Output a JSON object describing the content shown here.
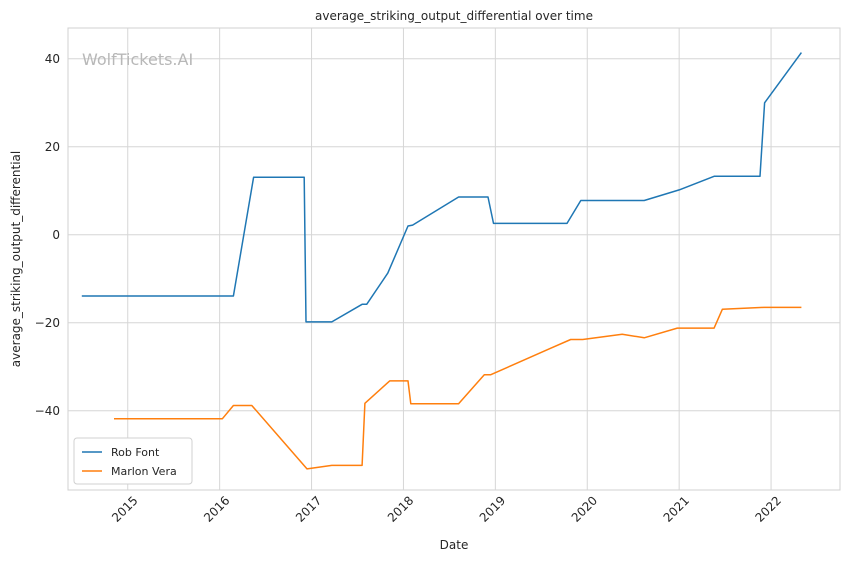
{
  "chart_data": {
    "type": "line",
    "title": "average_striking_output_differential over time",
    "xlabel": "Date",
    "ylabel": "average_striking_output_differential",
    "watermark": "WolfTickets.AI",
    "xlim": [
      2014.35,
      2022.75
    ],
    "ylim": [
      -58,
      47
    ],
    "x_ticks": [
      2015,
      2016,
      2017,
      2018,
      2019,
      2020,
      2021,
      2022
    ],
    "x_tick_labels": [
      "2015",
      "2016",
      "2017",
      "2018",
      "2019",
      "2020",
      "2021",
      "2022"
    ],
    "y_ticks": [
      -40,
      -20,
      0,
      20,
      40
    ],
    "y_tick_labels": [
      "−40",
      "−20",
      "0",
      "20",
      "40"
    ],
    "grid": true,
    "legend_position": "lower-left",
    "series": [
      {
        "name": "Rob Font",
        "color": "#1f77b4",
        "points": [
          [
            2014.5,
            -13.9
          ],
          [
            2016.15,
            -13.9
          ],
          [
            2016.37,
            13.1
          ],
          [
            2016.92,
            13.1
          ],
          [
            2016.94,
            -19.8
          ],
          [
            2017.22,
            -19.8
          ],
          [
            2017.55,
            -15.8
          ],
          [
            2017.6,
            -15.8
          ],
          [
            2017.83,
            -8.7
          ],
          [
            2018.05,
            2.0
          ],
          [
            2018.1,
            2.2
          ],
          [
            2018.6,
            8.6
          ],
          [
            2018.92,
            8.6
          ],
          [
            2018.98,
            2.6
          ],
          [
            2019.78,
            2.6
          ],
          [
            2019.93,
            7.8
          ],
          [
            2020.62,
            7.8
          ],
          [
            2021.0,
            10.2
          ],
          [
            2021.38,
            13.3
          ],
          [
            2021.88,
            13.3
          ],
          [
            2021.93,
            30.0
          ],
          [
            2022.33,
            41.4
          ]
        ]
      },
      {
        "name": "Marlon Vera",
        "color": "#ff7f0e",
        "points": [
          [
            2014.85,
            -41.8
          ],
          [
            2016.03,
            -41.8
          ],
          [
            2016.15,
            -38.8
          ],
          [
            2016.35,
            -38.8
          ],
          [
            2016.95,
            -53.2
          ],
          [
            2017.22,
            -52.4
          ],
          [
            2017.55,
            -52.4
          ],
          [
            2017.58,
            -38.3
          ],
          [
            2017.85,
            -33.2
          ],
          [
            2018.05,
            -33.2
          ],
          [
            2018.08,
            -38.4
          ],
          [
            2018.6,
            -38.4
          ],
          [
            2018.88,
            -31.8
          ],
          [
            2018.95,
            -31.8
          ],
          [
            2019.2,
            -29.5
          ],
          [
            2019.6,
            -25.8
          ],
          [
            2019.82,
            -23.8
          ],
          [
            2019.95,
            -23.8
          ],
          [
            2020.38,
            -22.6
          ],
          [
            2020.62,
            -23.4
          ],
          [
            2020.98,
            -21.2
          ],
          [
            2021.38,
            -21.2
          ],
          [
            2021.47,
            -16.9
          ],
          [
            2021.92,
            -16.5
          ],
          [
            2022.33,
            -16.5
          ]
        ]
      }
    ]
  }
}
